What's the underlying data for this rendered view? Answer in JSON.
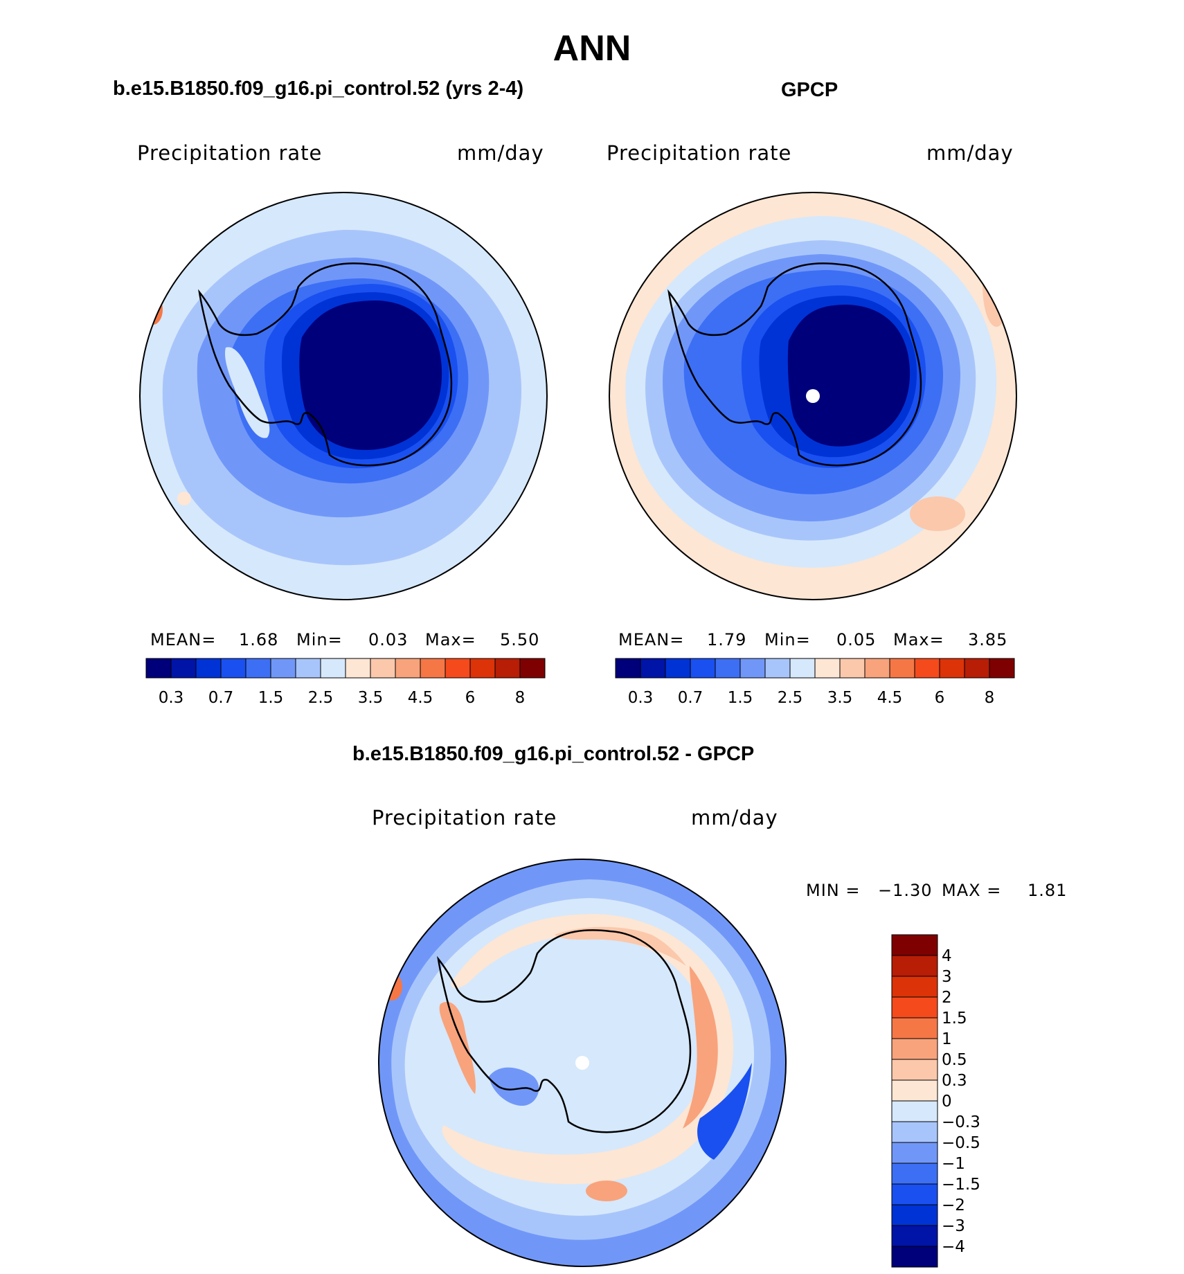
{
  "figure": {
    "title": "ANN"
  },
  "panels": {
    "model": {
      "title": "b.e15.B1850.f09_g16.pi_control.52 (yrs 2-4)",
      "variable": "Precipitation  rate",
      "units": "mm/day",
      "stats": {
        "mean_label": "MEAN=",
        "mean": "1.68",
        "min_label": "Min=",
        "min": "0.03",
        "max_label": "Max=",
        "max": "5.50"
      }
    },
    "obs": {
      "title": "GPCP",
      "variable": "Precipitation  rate",
      "units": "mm/day",
      "stats": {
        "mean_label": "MEAN=",
        "mean": "1.79",
        "min_label": "Min=",
        "min": "0.05",
        "max_label": "Max=",
        "max": "3.85"
      }
    },
    "diff": {
      "title": "b.e15.B1850.f09_g16.pi_control.52 - GPCP",
      "variable": "Precipitation  rate",
      "units": "mm/day",
      "stats": {
        "min_label": "MIN =",
        "min": "−1.30",
        "max_label": "MAX =",
        "max": "1.81"
      }
    }
  },
  "colorbars": {
    "abs": {
      "colors": [
        "#00007a",
        "#0014a8",
        "#0033d6",
        "#1a50f0",
        "#3d6ff5",
        "#7097f8",
        "#a8c5fb",
        "#d6e8fb",
        "#fde6d4",
        "#fbc8ab",
        "#f8a37c",
        "#f57746",
        "#f54a1c",
        "#dc3308",
        "#b81d05",
        "#7f0000"
      ],
      "tick_labels": [
        "0.3",
        "0.7",
        "1.5",
        "2.5",
        "3.5",
        "4.5",
        "6",
        "8"
      ]
    },
    "diff": {
      "colors": [
        "#00007a",
        "#0014a8",
        "#0033d6",
        "#1a50f0",
        "#3d6ff5",
        "#7097f8",
        "#a8c5fb",
        "#d6e8fb",
        "#fde6d4",
        "#fbc8ab",
        "#f8a37c",
        "#f57746",
        "#f54a1c",
        "#dc3308",
        "#b81d05",
        "#7f0000"
      ],
      "tick_labels": [
        "−4",
        "−3",
        "−2",
        "−1.5",
        "−1",
        "−0.5",
        "−0.3",
        "0",
        "0.3",
        "0.5",
        "1",
        "1.5",
        "2",
        "3",
        "4"
      ]
    }
  },
  "map_colors": {
    "ocean_far": "#d6e8fb",
    "ocean_mid": "#a8c5fb",
    "ocean_near": "#7097f8",
    "ring1": "#3d6ff5",
    "ring2": "#1a50f0",
    "ring3": "#0033d6",
    "interior": "#00007a",
    "pos_low": "#fde6d4",
    "pos_mid": "#fbc8ab",
    "pos_high": "#f8a37c",
    "pos_peak": "#f57746"
  }
}
